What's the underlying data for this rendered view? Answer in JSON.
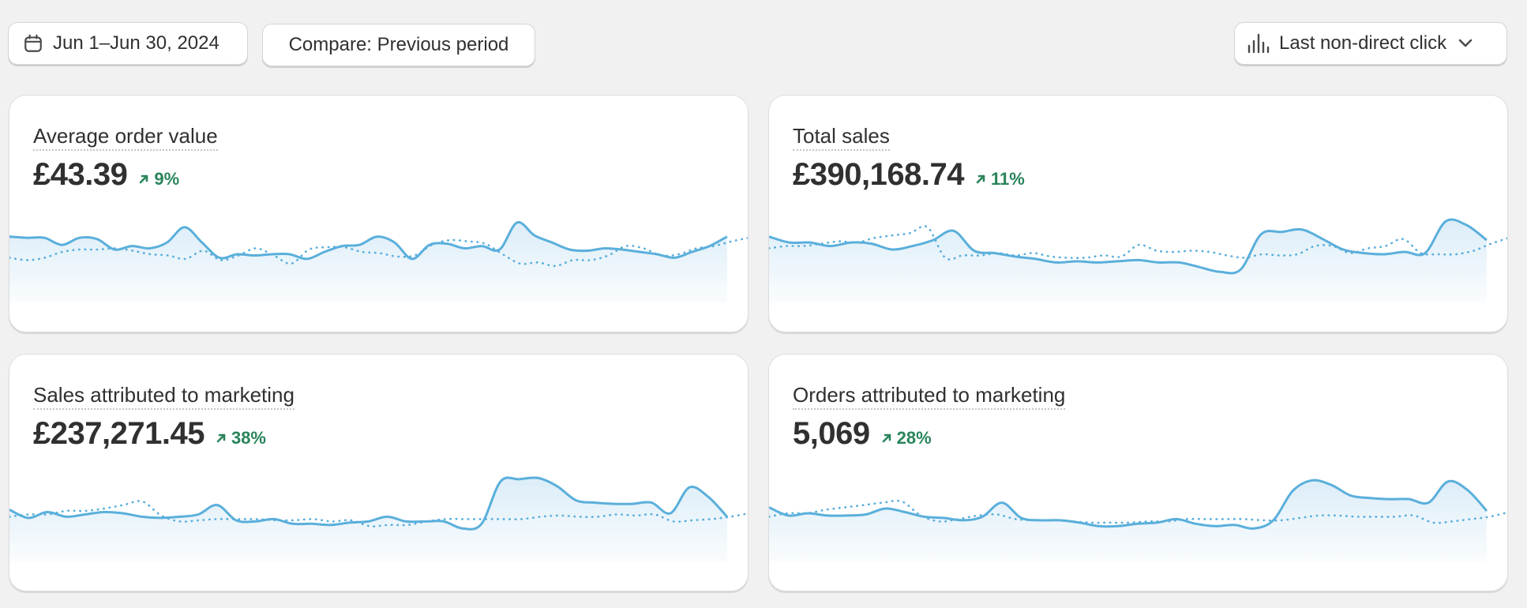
{
  "toolbar": {
    "date_range": "Jun 1–Jun 30, 2024",
    "date_icon": "calendar-icon",
    "compare": "Compare: Previous period",
    "attribution": "Last non-direct click",
    "attribution_icon": "bar-chart-icon"
  },
  "colors": {
    "line": "#5aafdb",
    "fill": "#dcedf8",
    "positive": "#29845a"
  },
  "cards": [
    {
      "title": "Average order value",
      "value": "£43.39",
      "change": "9%",
      "direction": "up",
      "chart_data": {
        "type": "area",
        "series": [
          {
            "values": [
              48,
              47,
              47,
              41,
              47,
              46,
              37,
              40,
              38,
              43,
              56,
              43,
              30,
              33,
              32,
              33,
              33,
              29,
              35,
              40,
              41,
              48,
              43,
              29,
              41,
              42,
              38,
              40,
              37,
              60,
              49,
              43,
              37,
              36,
              38,
              37,
              35,
              33,
              30,
              35,
              40,
              48
            ]
          },
          {
            "values": [
              30,
              28,
              30,
              35,
              37,
              37,
              38,
              36,
              33,
              32,
              29,
              36,
              28,
              32,
              38,
              32,
              25,
              37,
              39,
              39,
              35,
              34,
              31,
              32,
              41,
              45,
              44,
              42,
              33,
              25,
              26,
              23,
              28,
              28,
              32,
              40,
              38,
              32,
              33,
              38,
              40,
              44,
              47
            ]
          }
        ]
      }
    },
    {
      "title": "Total sales",
      "value": "£390,168.74",
      "change": "11%",
      "direction": "up",
      "chart_data": {
        "type": "area",
        "series": [
          {
            "values": [
              48,
              43,
              43,
              40,
              43,
              42,
              37,
              40,
              45,
              53,
              36,
              34,
              31,
              29,
              26,
              27,
              26,
              27,
              28,
              26,
              26,
              22,
              18,
              20,
              50,
              52,
              54,
              46,
              37,
              34,
              33,
              35,
              34,
              61,
              58,
              45
            ]
          },
          {
            "values": [
              38,
              40,
              40,
              42,
              44,
              43,
              47,
              49,
              51,
              56,
              30,
              32,
              32,
              34,
              32,
              34,
              31,
              30,
              30,
              32,
              31,
              41,
              36,
              35,
              36,
              35,
              32,
              30,
              33,
              32,
              33,
              40,
              40,
              34,
              38,
              40,
              46,
              34,
              33,
              33,
              36,
              42,
              47
            ]
          }
        ]
      }
    },
    {
      "title": "Sales attributed to marketing",
      "value": "£237,271.45",
      "change": "38%",
      "direction": "up",
      "chart_data": {
        "type": "area",
        "series": [
          {
            "values": [
              36,
              29,
              34,
              30,
              32,
              34,
              33,
              30,
              29,
              30,
              32,
              40,
              27,
              26,
              28,
              24,
              24,
              23,
              25,
              26,
              30,
              26,
              26,
              26,
              20,
              24,
              60,
              62,
              63,
              56,
              44,
              42,
              41,
              41,
              42,
              33,
              55,
              47,
              30
            ]
          },
          {
            "values": [
              30,
              32,
              32,
              35,
              35,
              37,
              40,
              43,
              31,
              26,
              27,
              28,
              28,
              28,
              27,
              27,
              28,
              26,
              27,
              22,
              23,
              23,
              26,
              28,
              28,
              28,
              28,
              28,
              30,
              31,
              30,
              30,
              32,
              31,
              32,
              26,
              27,
              28,
              30,
              33
            ]
          }
        ]
      }
    },
    {
      "title": "Orders attributed to marketing",
      "value": "5,069",
      "change": "28%",
      "direction": "up",
      "chart_data": {
        "type": "area",
        "series": [
          {
            "values": [
              38,
              31,
              33,
              31,
              31,
              32,
              37,
              34,
              30,
              29,
              27,
              30,
              42,
              29,
              27,
              27,
              25,
              22,
              22,
              24,
              25,
              28,
              24,
              22,
              23,
              20,
              27,
              52,
              61,
              57,
              48,
              46,
              45,
              45,
              42,
              60,
              53,
              35
            ]
          },
          {
            "values": [
              30,
              33,
              33,
              36,
              38,
              40,
              42,
              43,
              31,
              26,
              28,
              31,
              32,
              28,
              27,
              27,
              26,
              25,
              25,
              25,
              26,
              26,
              28,
              28,
              28,
              28,
              27,
              27,
              29,
              31,
              31,
              30,
              30,
              30,
              31,
              25,
              26,
              28,
              30,
              34
            ]
          }
        ]
      }
    }
  ]
}
